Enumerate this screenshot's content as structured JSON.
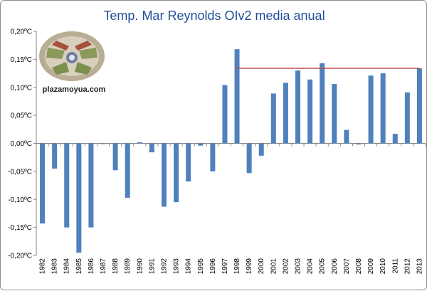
{
  "chart_data": {
    "type": "bar",
    "title": "Temp. Mar Reynolds OIv2 media anual",
    "xlabel": "",
    "ylabel": "",
    "ylim": [
      -0.2,
      0.2
    ],
    "yticks": [
      "0,20ºC",
      "0,15ºC",
      "0,10ºC",
      "0,05ºC",
      "0,00ºC",
      "-0,05ºC",
      "-0,10ºC",
      "-0,15ºC",
      "-0,20ºC"
    ],
    "ytick_values": [
      0.2,
      0.15,
      0.1,
      0.05,
      0.0,
      -0.05,
      -0.1,
      -0.15,
      -0.2
    ],
    "categories": [
      "1982",
      "1983",
      "1984",
      "1985",
      "1986",
      "1987",
      "1988",
      "1989",
      "1990",
      "1991",
      "1992",
      "1993",
      "1994",
      "1995",
      "1996",
      "1997",
      "1998",
      "1999",
      "2000",
      "2001",
      "2002",
      "2003",
      "2004",
      "2005",
      "2006",
      "2007",
      "2008",
      "2009",
      "2010",
      "2011",
      "2012",
      "2013"
    ],
    "values": [
      -0.143,
      -0.045,
      -0.15,
      -0.195,
      -0.15,
      -0.001,
      -0.048,
      -0.097,
      0.002,
      -0.016,
      -0.113,
      -0.105,
      -0.068,
      -0.004,
      -0.05,
      0.104,
      0.168,
      -0.053,
      -0.022,
      0.089,
      0.108,
      0.13,
      0.114,
      0.143,
      0.106,
      0.024,
      -0.002,
      0.121,
      0.125,
      0.017,
      0.091,
      0.134
    ],
    "bar_color": "#4f81bd",
    "reference_line": {
      "value": 0.134,
      "from": "1998",
      "to": "2013",
      "color": "#c0504d"
    },
    "grid": false,
    "watermark": {
      "text": "plazamoyua.com",
      "logo": "plazamoyua-logo"
    }
  }
}
